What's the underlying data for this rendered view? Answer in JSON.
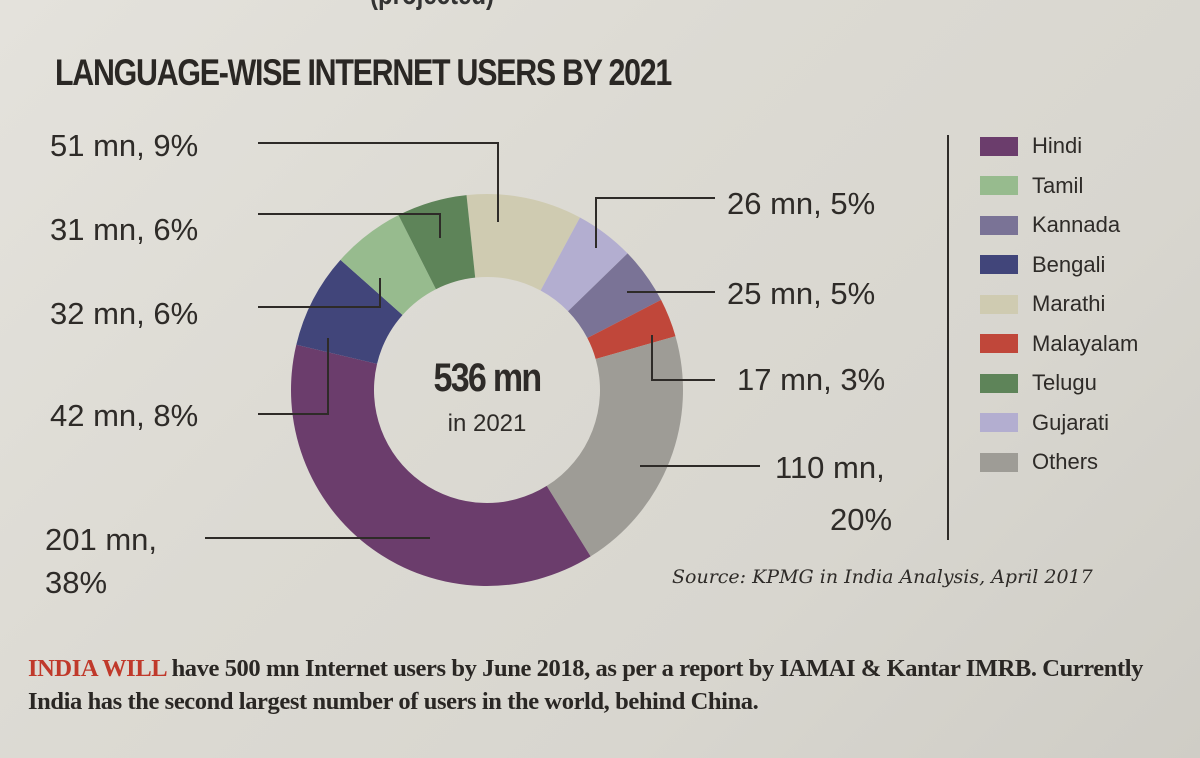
{
  "header_cut": "(projected)",
  "title": "LANGUAGE-WISE INTERNET USERS BY 2021",
  "center": {
    "value": "536 mn",
    "sub": "in 2021"
  },
  "source": "Source: KPMG in India Analysis, April 2017",
  "footnote": {
    "lead": "INDIA WILL",
    "text": " have 500 mn Internet users by June 2018, as per a report by IAMAI & Kantar IMRB. Currently India has the second largest number of users in the world, behind China."
  },
  "chart_data": {
    "type": "pie",
    "donut": true,
    "title": "LANGUAGE-WISE INTERNET USERS BY 2021",
    "total_label": "536 mn in 2021",
    "unit": "mn",
    "slices": [
      {
        "name": "Marathi",
        "value": 51,
        "pct": 9,
        "label": "51 mn, 9%",
        "color": "#cfcbb1"
      },
      {
        "name": "Gujarati",
        "value": 26,
        "pct": 5,
        "label": "26 mn, 5%",
        "color": "#b3aed0"
      },
      {
        "name": "Kannada",
        "value": 25,
        "pct": 5,
        "label": "25 mn, 5%",
        "color": "#7a7396"
      },
      {
        "name": "Malayalam",
        "value": 17,
        "pct": 3,
        "label": "17 mn, 3%",
        "color": "#c0473a"
      },
      {
        "name": "Others",
        "value": 110,
        "pct": 20,
        "label": "110 mn, 20%",
        "color": "#9e9c96"
      },
      {
        "name": "Hindi",
        "value": 201,
        "pct": 38,
        "label": "201 mn, 38%",
        "color": "#6b3d6c"
      },
      {
        "name": "Bengali",
        "value": 42,
        "pct": 8,
        "label": "42 mn, 8%",
        "color": "#41457a"
      },
      {
        "name": "Tamil",
        "value": 32,
        "pct": 6,
        "label": "32 mn, 6%",
        "color": "#97bb8e"
      },
      {
        "name": "Telugu",
        "value": 31,
        "pct": 6,
        "label": "31 mn, 6%",
        "color": "#5e8459"
      }
    ],
    "legend": [
      "Hindi",
      "Tamil",
      "Kannada",
      "Bengali",
      "Marathi",
      "Malayalam",
      "Telugu",
      "Gujarati",
      "Others"
    ],
    "legend_placement": "right"
  },
  "labels": {
    "marathi": "51 mn, 9%",
    "telugu": "31 mn, 6%",
    "tamil": "32 mn, 6%",
    "bengali": "42 mn, 8%",
    "hindi_1": "201 mn,",
    "hindi_2": "38%",
    "gujarati": "26 mn, 5%",
    "kannada": "25 mn, 5%",
    "malayalam": "17 mn, 3%",
    "others_1": "110 mn,",
    "others_2": "20%"
  }
}
